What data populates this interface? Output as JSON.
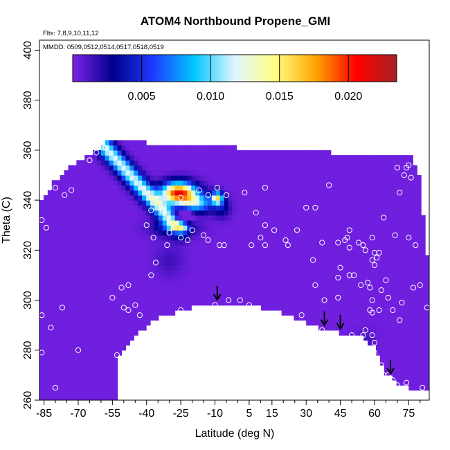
{
  "chart_data": {
    "type": "heatmap",
    "title": "ATOM4 Northbound Propene_GMI",
    "annotations": {
      "flights": "Flts: 7,8,9,10,11,12",
      "dates": "MMDD: 0509,0512,0514,0517,0518,0519"
    },
    "xlabel": "Latitude (deg N)",
    "ylabel": "Theta (C)",
    "xlim": [
      -87,
      84
    ],
    "ylim": [
      260,
      404
    ],
    "x_ticks": [
      -85,
      -70,
      -55,
      -40,
      -25,
      -10,
      5,
      15,
      30,
      45,
      60,
      75
    ],
    "y_ticks": [
      260,
      280,
      300,
      320,
      340,
      360,
      380,
      400
    ],
    "colorbar": {
      "range": [
        0,
        0.0235
      ],
      "ticks": [
        0.005,
        0.01,
        0.015,
        0.02
      ],
      "tick_labels": [
        "0.005",
        "0.010",
        "0.015",
        "0.020"
      ],
      "colors": [
        "#7d22e8",
        "#00008f",
        "#1e3cff",
        "#00c8ff",
        "#e0f4ff",
        "#ffff80",
        "#ffa500",
        "#ff0000",
        "#a82222"
      ]
    },
    "background_value": 0.0003,
    "field_hotspots": [
      {
        "lat": -33,
        "theta": 353,
        "value": 0.0085,
        "note": "streak top"
      },
      {
        "lat": -28,
        "theta": 344,
        "value": 0.0215
      },
      {
        "lat": -22,
        "theta": 342,
        "value": 0.0185
      },
      {
        "lat": -33,
        "theta": 337,
        "value": 0.0125
      },
      {
        "lat": -22,
        "theta": 333,
        "value": 0.009
      },
      {
        "lat": -30,
        "theta": 328,
        "value": 0.003
      },
      {
        "lat": -9,
        "theta": 341,
        "value": 0.016
      },
      {
        "lat": -9,
        "theta": 336,
        "value": 0.004
      }
    ],
    "arrow_latitudes": [
      -9,
      38,
      45,
      67
    ],
    "observation_points": [
      {
        "x": -86,
        "y": 332
      },
      {
        "x": -84,
        "y": 329
      },
      {
        "x": -80,
        "y": 345
      },
      {
        "x": -76,
        "y": 342
      },
      {
        "x": -73,
        "y": 344
      },
      {
        "x": -65,
        "y": 356
      },
      {
        "x": -62,
        "y": 359
      },
      {
        "x": -58,
        "y": 361
      },
      {
        "x": -82,
        "y": 289
      },
      {
        "x": -77,
        "y": 297
      },
      {
        "x": -86,
        "y": 294
      },
      {
        "x": -86,
        "y": 279
      },
      {
        "x": -55,
        "y": 301
      },
      {
        "x": -51,
        "y": 305
      },
      {
        "x": -48,
        "y": 306
      },
      {
        "x": -50,
        "y": 297
      },
      {
        "x": -48,
        "y": 296
      },
      {
        "x": -45,
        "y": 298
      },
      {
        "x": -43,
        "y": 294
      },
      {
        "x": -53,
        "y": 278
      },
      {
        "x": -47,
        "y": 276
      },
      {
        "x": -40,
        "y": 280
      },
      {
        "x": -37,
        "y": 289
      },
      {
        "x": -30,
        "y": 292
      },
      {
        "x": -25,
        "y": 296
      },
      {
        "x": -18,
        "y": 296
      },
      {
        "x": -10,
        "y": 298
      },
      {
        "x": -38,
        "y": 310
      },
      {
        "x": -36,
        "y": 315
      },
      {
        "x": -40,
        "y": 330
      },
      {
        "x": -38,
        "y": 336
      },
      {
        "x": -33,
        "y": 336
      },
      {
        "x": -25,
        "y": 341
      },
      {
        "x": -17,
        "y": 344
      },
      {
        "x": -13,
        "y": 342
      },
      {
        "x": -9,
        "y": 345
      },
      {
        "x": -5,
        "y": 342
      },
      {
        "x": 3,
        "y": 343
      },
      {
        "x": 12,
        "y": 345
      },
      {
        "x": 8,
        "y": 335
      },
      {
        "x": 12,
        "y": 330
      },
      {
        "x": 16,
        "y": 328
      },
      {
        "x": 21,
        "y": 324
      },
      {
        "x": 26,
        "y": 328
      },
      {
        "x": 30,
        "y": 337
      },
      {
        "x": 34,
        "y": 337
      },
      {
        "x": 40,
        "y": 346
      },
      {
        "x": 10,
        "y": 325
      },
      {
        "x": 6,
        "y": 322
      },
      {
        "x": 12,
        "y": 322
      },
      {
        "x": -8,
        "y": 322
      },
      {
        "x": -6,
        "y": 322
      },
      {
        "x": -25,
        "y": 325
      },
      {
        "x": -22,
        "y": 324
      },
      {
        "x": -15,
        "y": 326
      },
      {
        "x": -20,
        "y": 328
      },
      {
        "x": -13,
        "y": 324
      },
      {
        "x": -30,
        "y": 327
      },
      {
        "x": -37,
        "y": 325
      },
      {
        "x": -31,
        "y": 322
      },
      {
        "x": 22,
        "y": 322
      },
      {
        "x": 37,
        "y": 323
      },
      {
        "x": 44,
        "y": 323
      },
      {
        "x": 47,
        "y": 324
      },
      {
        "x": 49,
        "y": 321
      },
      {
        "x": 53,
        "y": 323
      },
      {
        "x": 55,
        "y": 322
      },
      {
        "x": 49,
        "y": 328
      },
      {
        "x": 48,
        "y": 325
      },
      {
        "x": 56,
        "y": 320
      },
      {
        "x": 59,
        "y": 325
      },
      {
        "x": 60,
        "y": 319
      },
      {
        "x": 62,
        "y": 319
      },
      {
        "x": 64,
        "y": 333
      },
      {
        "x": 69,
        "y": 326
      },
      {
        "x": 78,
        "y": 322
      },
      {
        "x": 75,
        "y": 325
      },
      {
        "x": 74,
        "y": 353
      },
      {
        "x": 71,
        "y": 343
      },
      {
        "x": 73,
        "y": 350
      },
      {
        "x": 75,
        "y": 354
      },
      {
        "x": 70,
        "y": 353
      },
      {
        "x": 76,
        "y": 349
      },
      {
        "x": 33,
        "y": 316
      },
      {
        "x": 45,
        "y": 313
      },
      {
        "x": 49,
        "y": 310
      },
      {
        "x": 51,
        "y": 310
      },
      {
        "x": 44,
        "y": 309
      },
      {
        "x": 59,
        "y": 316
      },
      {
        "x": 60,
        "y": 314
      },
      {
        "x": 61,
        "y": 317
      },
      {
        "x": 57,
        "y": 307
      },
      {
        "x": 63,
        "y": 304
      },
      {
        "x": 65,
        "y": 308
      },
      {
        "x": 58,
        "y": 305
      },
      {
        "x": 34,
        "y": 306
      },
      {
        "x": 54,
        "y": 306
      },
      {
        "x": 44,
        "y": 301
      },
      {
        "x": 38,
        "y": 300
      },
      {
        "x": 59,
        "y": 300
      },
      {
        "x": 58,
        "y": 296
      },
      {
        "x": 59,
        "y": 295
      },
      {
        "x": 62,
        "y": 296
      },
      {
        "x": 68,
        "y": 296
      },
      {
        "x": 71,
        "y": 292
      },
      {
        "x": 72,
        "y": 299
      },
      {
        "x": 77,
        "y": 305
      },
      {
        "x": 80,
        "y": 306
      },
      {
        "x": 83,
        "y": 297
      },
      {
        "x": 66,
        "y": 301
      },
      {
        "x": 56,
        "y": 288
      },
      {
        "x": 59,
        "y": 286
      },
      {
        "x": 55,
        "y": 286
      },
      {
        "x": 50,
        "y": 286
      },
      {
        "x": 60,
        "y": 283
      },
      {
        "x": 60,
        "y": 279
      },
      {
        "x": 62,
        "y": 272
      },
      {
        "x": 63,
        "y": 274
      },
      {
        "x": 64,
        "y": 270
      },
      {
        "x": 66,
        "y": 270
      },
      {
        "x": 68,
        "y": 268
      },
      {
        "x": 74,
        "y": 267
      },
      {
        "x": 81,
        "y": 265
      },
      {
        "x": 65,
        "y": 268
      },
      {
        "x": 70,
        "y": 266
      },
      {
        "x": -70,
        "y": 280
      },
      {
        "x": -80,
        "y": 265
      },
      {
        "x": -4,
        "y": 300
      },
      {
        "x": 1,
        "y": 300
      },
      {
        "x": 5,
        "y": 298
      },
      {
        "x": 15,
        "y": 294
      },
      {
        "x": 22,
        "y": 292
      },
      {
        "x": 37,
        "y": 288
      },
      {
        "x": 28,
        "y": 294
      }
    ]
  }
}
